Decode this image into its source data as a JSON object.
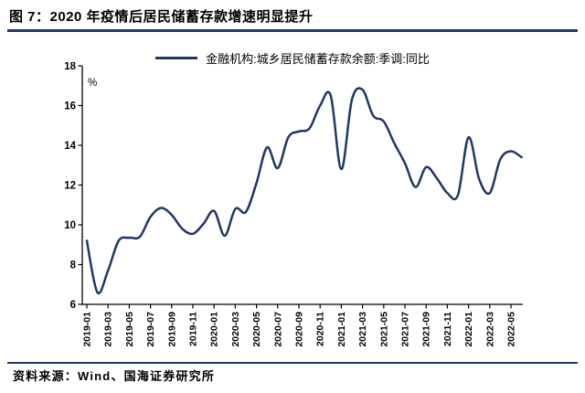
{
  "header": {
    "title": "图 7：2020 年疫情后居民储蓄存款增速明显提升"
  },
  "legend": {
    "label": "金融机构:城乡居民储蓄存款余额:季调:同比"
  },
  "footer": {
    "source": "资料来源：Wind、国海证券研究所"
  },
  "colors": {
    "line": "#1F3864",
    "divider": "#1F3864",
    "axis": "#000000",
    "text": "#000000"
  },
  "chart_data": {
    "type": "line",
    "title": "2020 年疫情后居民储蓄存款增速明显提升",
    "ylabel": "%",
    "unit_label": "%",
    "ylim": [
      6,
      18
    ],
    "y_tick_labels": [
      "18",
      "16",
      "14",
      "12",
      "10",
      "8",
      "6"
    ],
    "x_tick_labels": [
      "2019-01",
      "2019-03",
      "2019-05",
      "2019-07",
      "2019-09",
      "2019-11",
      "2020-01",
      "2020-03",
      "2020-05",
      "2020-07",
      "2020-09",
      "2020-11",
      "2021-01",
      "2021-03",
      "2021-05",
      "2021-07",
      "2021-09",
      "2021-11",
      "2022-01",
      "2022-03",
      "2022-05"
    ],
    "grid": false,
    "legend_position": "top",
    "x": [
      "2019-01",
      "2019-02",
      "2019-03",
      "2019-04",
      "2019-05",
      "2019-06",
      "2019-07",
      "2019-08",
      "2019-09",
      "2019-10",
      "2019-11",
      "2019-12",
      "2020-01",
      "2020-02",
      "2020-03",
      "2020-04",
      "2020-05",
      "2020-06",
      "2020-07",
      "2020-08",
      "2020-09",
      "2020-10",
      "2020-11",
      "2020-12",
      "2021-01",
      "2021-02",
      "2021-03",
      "2021-04",
      "2021-05",
      "2021-06",
      "2021-07",
      "2021-08",
      "2021-09",
      "2021-10",
      "2021-11",
      "2021-12",
      "2022-01",
      "2022-02",
      "2022-03",
      "2022-04",
      "2022-05",
      "2022-06"
    ],
    "series": [
      {
        "name": "金融机构:城乡居民储蓄存款余额:季调:同比",
        "values": [
          9.2,
          6.6,
          7.7,
          9.2,
          9.35,
          9.4,
          10.4,
          10.85,
          10.5,
          9.8,
          9.55,
          10.05,
          10.7,
          9.45,
          10.8,
          10.65,
          12.1,
          13.9,
          12.85,
          14.4,
          14.7,
          14.85,
          16.0,
          16.5,
          12.8,
          16.3,
          16.8,
          15.5,
          15.2,
          14.1,
          13.1,
          11.9,
          12.9,
          12.35,
          11.6,
          11.5,
          14.4,
          12.3,
          11.6,
          13.3,
          13.7,
          13.4
        ]
      }
    ]
  }
}
